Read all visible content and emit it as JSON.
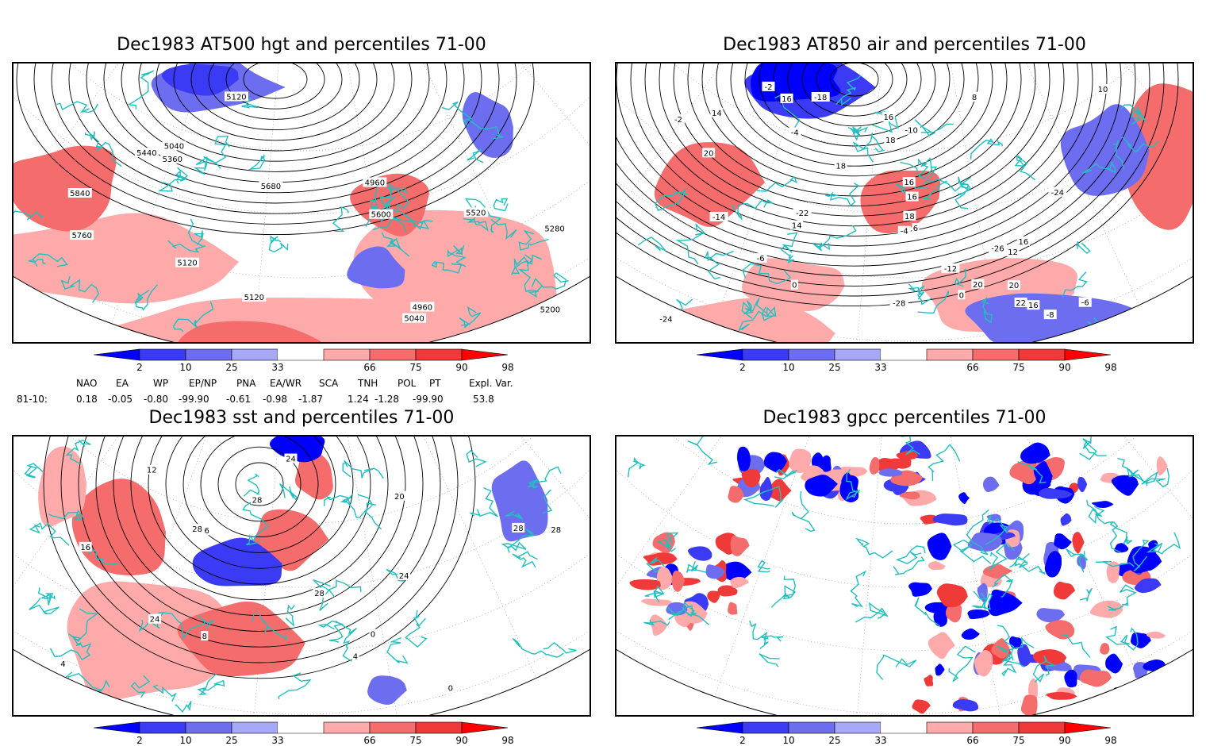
{
  "panels": [
    {
      "id": "hgt",
      "title": "Dec1983 AT500 hgt and percentiles 71-00",
      "contour_labels": [
        "4960",
        "5040",
        "5120",
        "5120",
        "4960",
        "5040",
        "5120",
        "5200",
        "5280",
        "5360",
        "5440",
        "5520",
        "5600",
        "5680",
        "5760",
        "5840"
      ]
    },
    {
      "id": "air",
      "title": "Dec1983 AT850 air and percentiles 71-00",
      "contour_labels": [
        "-24",
        "-28",
        "-24",
        "-26",
        "-22",
        "-18",
        "-12",
        "-10",
        "-14",
        "-8",
        "-6",
        "-6",
        "-4",
        "-2",
        "0",
        "0",
        "-2",
        "-4",
        "16",
        "16",
        "14",
        "16",
        "18",
        "20",
        "16",
        "12",
        "10",
        "8",
        "6",
        "16",
        "14",
        "18",
        "22",
        "20",
        "20",
        "18",
        "16"
      ]
    },
    {
      "id": "sst",
      "title": "Dec1983 sst and percentiles 71-00",
      "contour_labels": [
        "28",
        "24",
        "24",
        "28",
        "0",
        "4",
        "8",
        "0",
        "4",
        "16",
        "12",
        "16",
        "20",
        "24",
        "28",
        "28",
        "28"
      ]
    },
    {
      "id": "gpcc",
      "title": "Dec1983 gpcc percentiles 71-00",
      "contour_labels": []
    }
  ],
  "colorbar": {
    "labels": [
      "2",
      "10",
      "25",
      "33",
      "66",
      "75",
      "90",
      "98"
    ],
    "colors": [
      "#0000ff",
      "#3b3bf5",
      "#6d6df0",
      "#a8a8f8",
      "#ffffff",
      "#ffaaaa",
      "#f56c6c",
      "#f03a3a",
      "#ff0000"
    ]
  },
  "indices": {
    "row_label": "81-10:",
    "names": [
      "NAO",
      "EA",
      "WP",
      "EP/NP",
      "PNA",
      "EA/WR",
      "SCA",
      "TNH",
      "POL",
      "PT",
      "Expl. Var."
    ],
    "values": [
      "0.18",
      "-0.05",
      "-0.80",
      "-99.90",
      "-0.61",
      "-0.98",
      "-1.87",
      "1.24",
      "-1.28",
      "-99.90",
      "53.8"
    ]
  },
  "colors": {
    "coastline": "#20c0c0",
    "contour": "#000000",
    "grid": "#9a9a9a"
  }
}
